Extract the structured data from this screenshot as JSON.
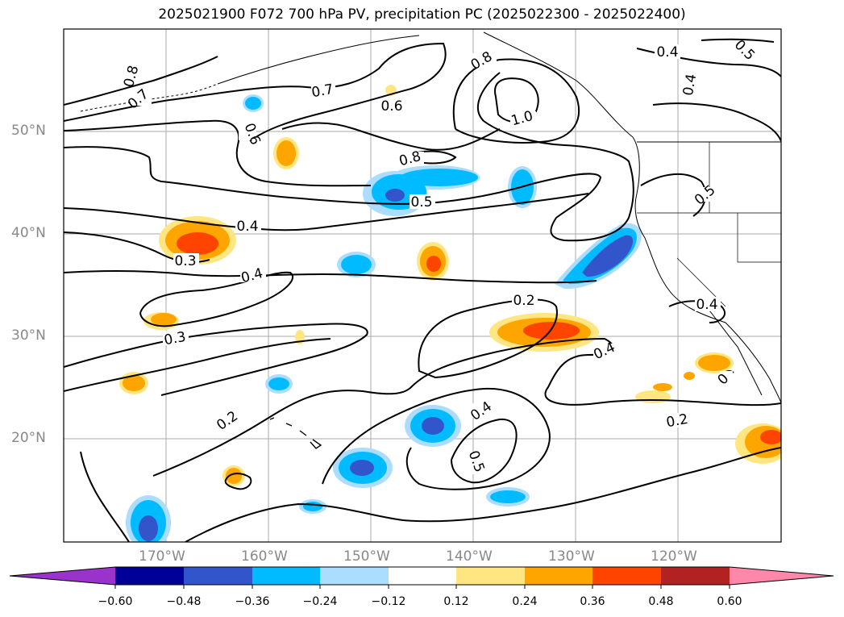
{
  "title": "2025021900 F072 700 hPa PV, precipitation PC (2025022300 - 2025022400)",
  "latitude_labels": [
    "50°N",
    "40°N",
    "30°N",
    "20°N"
  ],
  "longitude_labels": [
    "170°W",
    "160°W",
    "150°W",
    "140°W",
    "130°W",
    "120°W"
  ],
  "contour_labels": [
    "0.8",
    "0.7",
    "0.6",
    "0.7",
    "0.6",
    "0.8",
    "1.0",
    "0.4",
    "0.5",
    "0.4",
    "0.8",
    "0.5",
    "0.5",
    "0.4",
    "0.3",
    "0.4",
    "0.2",
    "0.4",
    "0.3",
    "0.4",
    "0.2",
    "0.4",
    "0.5",
    "0.2",
    "0"
  ],
  "colorbar": {
    "tick_labels": [
      "−0.60",
      "−0.48",
      "−0.36",
      "−0.24",
      "−0.12",
      "0.12",
      "0.24",
      "0.36",
      "0.48",
      "0.60"
    ],
    "colors": [
      "#9933cc",
      "#000099",
      "#3355cc",
      "#00bbff",
      "#aaddff",
      "#ffffff",
      "#ffe680",
      "#ffa500",
      "#ff4400",
      "#b22222",
      "#ff88aa"
    ]
  },
  "colors": {
    "positive_light": "#ffe680",
    "positive_mid": "#ffa500",
    "positive_strong": "#ff4400",
    "negative_light": "#aaddff",
    "negative_mid": "#00bbff",
    "negative_strong": "#3355cc",
    "contour": "#000000",
    "grid": "#aaaaaa"
  }
}
